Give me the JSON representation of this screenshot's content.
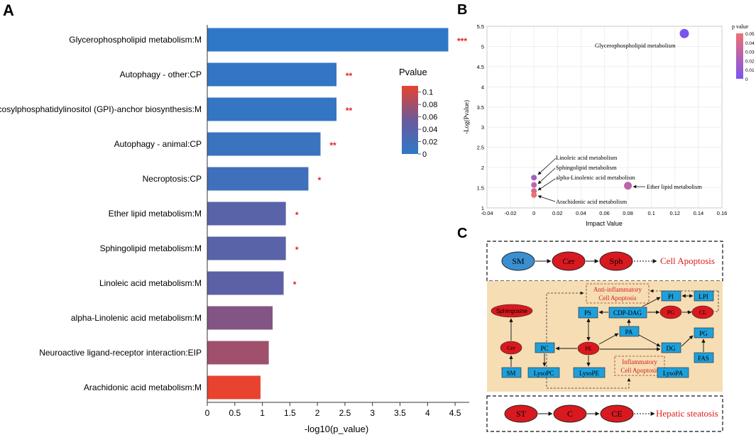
{
  "panel_labels": {
    "a": "A",
    "b": "B",
    "c": "C"
  },
  "chart_data": [
    {
      "type": "bar",
      "orientation": "horizontal",
      "panel": "A",
      "categories": [
        "Glycerophospholipid metabolism:M",
        "Autophagy - other:CP",
        "Glycosylphosphatidylinositol (GPI)-anchor biosynthesis:M",
        "Autophagy - animal:CP",
        "Necroptosis:CP",
        "Ether lipid metabolism:M",
        "Sphingolipid metabolism:M",
        "Linoleic acid metabolism:M",
        "alpha-Linolenic acid metabolism:M",
        "Neuroactive ligand-receptor interaction:EIP",
        "Arachidonic acid metabolism:M"
      ],
      "values": [
        4.37,
        2.34,
        2.34,
        2.05,
        1.83,
        1.42,
        1.42,
        1.38,
        1.18,
        1.11,
        0.96
      ],
      "pvalues": [
        0.0,
        0.005,
        0.005,
        0.01,
        0.015,
        0.038,
        0.038,
        0.042,
        0.066,
        0.078,
        0.11
      ],
      "significance": [
        "***",
        "**",
        "**",
        "**",
        "*",
        "*",
        "*",
        "*",
        "",
        "",
        ""
      ],
      "xlabel": "-log10(p_value)",
      "xlim": [
        0,
        4.5
      ],
      "xticks": [
        0,
        0.5,
        1,
        1.5,
        2,
        2.5,
        3,
        3.5,
        4,
        4.5
      ],
      "xtick_labels": [
        "0",
        "0.5",
        "1",
        "1.5",
        "2",
        "2.5",
        "3",
        "3.5",
        "4",
        "4.5"
      ],
      "legend": {
        "title": "Pvalue",
        "range": [
          0,
          0.11
        ],
        "ticks": [
          0,
          0.02,
          0.04,
          0.06,
          0.08,
          0.1
        ],
        "tick_labels": [
          "0",
          "0.02",
          "0.04",
          "0.06",
          "0.08",
          "0.1"
        ],
        "color_low": "#2f78c8",
        "color_mid": "#6a5a9a",
        "color_high": "#e8432f",
        "placement": "right"
      }
    },
    {
      "type": "scatter",
      "panel": "B",
      "points": [
        {
          "name": "Glycerophospholipid metabolism",
          "x": 0.128,
          "y": 5.32,
          "p": 0.0,
          "size": "large"
        },
        {
          "name": "Ether lipid metabolism",
          "x": 0.08,
          "y": 1.55,
          "p": 0.028,
          "size": "medium"
        },
        {
          "name": "Linoleic acid metabolism",
          "x": 0.0,
          "y": 1.75,
          "p": 0.018,
          "size": "small"
        },
        {
          "name": "Sphingolipid metabolism",
          "x": 0.0,
          "y": 1.57,
          "p": 0.027,
          "size": "small"
        },
        {
          "name": "alpha-Linolenic acid metabolism",
          "x": 0.0,
          "y": 1.42,
          "p": 0.038,
          "size": "small"
        },
        {
          "name": "Arachidonic acid metabolism",
          "x": 0.0,
          "y": 1.32,
          "p": 0.048,
          "size": "small"
        }
      ],
      "xlabel": "Impact Value",
      "ylabel": "-Log(Pvalue)",
      "xlim": [
        -0.04,
        0.16
      ],
      "ylim": [
        1,
        5.5
      ],
      "xticks": [
        -0.04,
        -0.02,
        0,
        0.02,
        0.04,
        0.06,
        0.08,
        0.1,
        0.12,
        0.14,
        0.16
      ],
      "xtick_labels": [
        "-0.04",
        "-0.02",
        "0",
        "0.02",
        "0.04",
        "0.06",
        "0.08",
        "0.1",
        "0.12",
        "0.14",
        "0.16"
      ],
      "yticks": [
        1,
        1.5,
        2,
        2.5,
        3,
        3.5,
        4,
        4.5,
        5,
        5.5
      ],
      "ytick_labels": [
        "1",
        "1.5",
        "2",
        "2.5",
        "3",
        "3.5",
        "4",
        "4.5",
        "5",
        "5.5"
      ],
      "grid": true,
      "legend": {
        "title": "p value",
        "range": [
          0,
          0.05
        ],
        "ticks": [
          0,
          0.01,
          0.02,
          0.03,
          0.04,
          0.05
        ],
        "tick_labels": [
          "0",
          "0.01",
          "0.02",
          "0.03",
          "0.04",
          "0.05"
        ],
        "color_low": "#7a55f0",
        "color_high": "#f07070",
        "placement": "top-right"
      }
    }
  ],
  "diagram_c": {
    "row1": {
      "nodes": [
        "SM",
        "Cer",
        "Sph"
      ],
      "outcome": "Cell Apoptosis"
    },
    "middle": {
      "boxes": {
        "pi": "PI",
        "lpi": "LPI",
        "ps": "PS",
        "cdp_dag": "CDP-DAG",
        "pa": "PA",
        "pg_box": "PG",
        "pc": "PC",
        "dg": "DG",
        "fas": "FAS",
        "sm": "SM",
        "lysopc": "LysoPC",
        "lysope": "LysoPE",
        "lysopa": "LysoPA"
      },
      "ovals": {
        "sphingosine": "Sphingosine",
        "cer": "Cer",
        "pe": "PE",
        "pg": "PG",
        "cl": "CL"
      },
      "notes": {
        "anti_line1": "Anti-inflammatory",
        "anti_line2": "Cell Apoptosis",
        "inflam_line1": "Inflammatory",
        "inflam_line2": "Cell Apoptosis"
      }
    },
    "row3": {
      "nodes": [
        "ST",
        "C",
        "CE"
      ],
      "outcome": "Hepatic steatosis"
    }
  }
}
